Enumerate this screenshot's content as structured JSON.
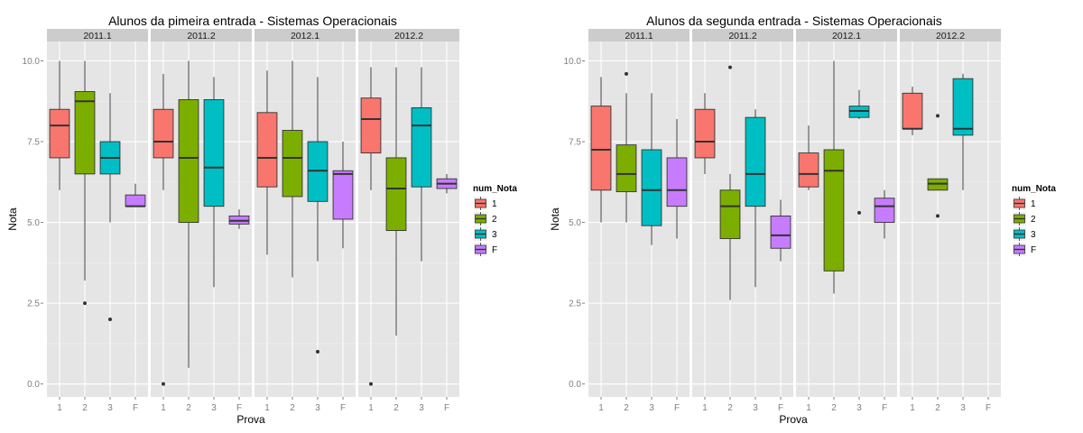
{
  "colors": {
    "panel_bg": "#E5E5E5",
    "strip_bg": "#CCCCCC",
    "grid_major": "#FFFFFF",
    "grid_minor": "#F2F2F2",
    "fill_1": "#F8766D",
    "fill_2": "#7CAE00",
    "fill_3": "#00BFC4",
    "fill_F": "#C77CFF",
    "outline": "#333333"
  },
  "chart_data": [
    {
      "type": "box",
      "title": "Alunos da pimeira entrada -  Sistemas Operacionais",
      "xlabel": "Prova",
      "ylabel": "Nota",
      "ylim": [
        -0.4,
        10.6
      ],
      "yticks": [
        "0.0",
        "2.5",
        "5.0",
        "7.5",
        "10.0"
      ],
      "categories": [
        "1",
        "2",
        "3",
        "F"
      ],
      "facets": [
        "2011.1",
        "2011.2",
        "2012.1",
        "2012.2"
      ],
      "legend": {
        "title": "num_Nota",
        "entries": [
          "1",
          "2",
          "3",
          "F"
        ],
        "position": "right"
      },
      "series": [
        {
          "facet": "2011.1",
          "boxes": [
            {
              "cat": "1",
              "min": 6.0,
              "q1": 7.0,
              "median": 8.0,
              "q3": 8.5,
              "max": 10.0,
              "outliers": []
            },
            {
              "cat": "2",
              "min": 3.2,
              "q1": 6.5,
              "median": 8.75,
              "q3": 9.05,
              "max": 10.0,
              "outliers": [
                2.5
              ]
            },
            {
              "cat": "3",
              "min": 5.0,
              "q1": 6.5,
              "median": 7.0,
              "q3": 7.5,
              "max": 9.0,
              "outliers": [
                2.0
              ]
            },
            {
              "cat": "F",
              "min": 5.5,
              "q1": 5.5,
              "median": 5.5,
              "q3": 5.85,
              "max": 6.2,
              "outliers": []
            }
          ]
        },
        {
          "facet": "2011.2",
          "boxes": [
            {
              "cat": "1",
              "min": 6.0,
              "q1": 7.0,
              "median": 7.5,
              "q3": 8.5,
              "max": 9.6,
              "outliers": [
                0.0
              ]
            },
            {
              "cat": "2",
              "min": 0.5,
              "q1": 5.0,
              "median": 7.0,
              "q3": 8.8,
              "max": 10.0,
              "outliers": []
            },
            {
              "cat": "3",
              "min": 3.0,
              "q1": 5.5,
              "median": 6.7,
              "q3": 8.8,
              "max": 9.5,
              "outliers": []
            },
            {
              "cat": "F",
              "min": 4.8,
              "q1": 4.95,
              "median": 5.05,
              "q3": 5.2,
              "max": 5.4,
              "outliers": []
            }
          ]
        },
        {
          "facet": "2012.1",
          "boxes": [
            {
              "cat": "1",
              "min": 4.0,
              "q1": 6.1,
              "median": 7.0,
              "q3": 8.4,
              "max": 9.7,
              "outliers": []
            },
            {
              "cat": "2",
              "min": 3.3,
              "q1": 5.8,
              "median": 7.0,
              "q3": 7.85,
              "max": 10.0,
              "outliers": []
            },
            {
              "cat": "3",
              "min": 3.8,
              "q1": 5.65,
              "median": 6.6,
              "q3": 7.5,
              "max": 9.5,
              "outliers": [
                1.0
              ]
            },
            {
              "cat": "F",
              "min": 4.2,
              "q1": 5.1,
              "median": 6.5,
              "q3": 6.6,
              "max": 7.5,
              "outliers": []
            }
          ]
        },
        {
          "facet": "2012.2",
          "boxes": [
            {
              "cat": "1",
              "min": 6.0,
              "q1": 7.15,
              "median": 8.2,
              "q3": 8.85,
              "max": 9.8,
              "outliers": [
                0.0
              ]
            },
            {
              "cat": "2",
              "min": 1.5,
              "q1": 4.75,
              "median": 6.05,
              "q3": 7.0,
              "max": 9.8,
              "outliers": []
            },
            {
              "cat": "3",
              "min": 3.8,
              "q1": 6.1,
              "median": 8.0,
              "q3": 8.55,
              "max": 9.8,
              "outliers": []
            },
            {
              "cat": "F",
              "min": 5.9,
              "q1": 6.05,
              "median": 6.2,
              "q3": 6.35,
              "max": 6.5,
              "outliers": []
            }
          ]
        }
      ]
    },
    {
      "type": "box",
      "title": "Alunos da segunda entrada -  Sistemas Operacionais",
      "xlabel": "Prova",
      "ylabel": "Nota",
      "ylim": [
        -0.4,
        10.6
      ],
      "yticks": [
        "0.0",
        "2.5",
        "5.0",
        "7.5",
        "10.0"
      ],
      "categories": [
        "1",
        "2",
        "3",
        "F"
      ],
      "facets": [
        "2011.1",
        "2011.2",
        "2012.1",
        "2012.2"
      ],
      "legend": {
        "title": "num_Nota",
        "entries": [
          "1",
          "2",
          "3",
          "F"
        ],
        "position": "right"
      },
      "series": [
        {
          "facet": "2011.1",
          "boxes": [
            {
              "cat": "1",
              "min": 5.0,
              "q1": 6.0,
              "median": 7.25,
              "q3": 8.6,
              "max": 9.5,
              "outliers": []
            },
            {
              "cat": "2",
              "min": 5.0,
              "q1": 5.95,
              "median": 6.5,
              "q3": 7.4,
              "max": 9.0,
              "outliers": [
                9.6
              ]
            },
            {
              "cat": "3",
              "min": 4.3,
              "q1": 4.9,
              "median": 6.0,
              "q3": 7.25,
              "max": 9.0,
              "outliers": []
            },
            {
              "cat": "F",
              "min": 4.5,
              "q1": 5.5,
              "median": 6.0,
              "q3": 7.0,
              "max": 8.2,
              "outliers": []
            }
          ]
        },
        {
          "facet": "2011.2",
          "boxes": [
            {
              "cat": "1",
              "min": 6.5,
              "q1": 7.0,
              "median": 7.5,
              "q3": 8.5,
              "max": 9.0,
              "outliers": []
            },
            {
              "cat": "2",
              "min": 2.6,
              "q1": 4.5,
              "median": 5.5,
              "q3": 6.0,
              "max": 6.5,
              "outliers": [
                9.8
              ]
            },
            {
              "cat": "3",
              "min": 3.0,
              "q1": 5.5,
              "median": 6.5,
              "q3": 8.25,
              "max": 8.5,
              "outliers": []
            },
            {
              "cat": "F",
              "min": 3.8,
              "q1": 4.2,
              "median": 4.6,
              "q3": 5.2,
              "max": 5.7,
              "outliers": []
            }
          ]
        },
        {
          "facet": "2012.1",
          "boxes": [
            {
              "cat": "1",
              "min": 6.0,
              "q1": 6.1,
              "median": 6.5,
              "q3": 7.15,
              "max": 8.0,
              "outliers": []
            },
            {
              "cat": "2",
              "min": 2.8,
              "q1": 3.5,
              "median": 6.6,
              "q3": 7.25,
              "max": 10.0,
              "outliers": []
            },
            {
              "cat": "3",
              "min": 8.2,
              "q1": 8.25,
              "median": 8.45,
              "q3": 8.6,
              "max": 9.1,
              "outliers": [
                5.3
              ]
            },
            {
              "cat": "F",
              "min": 4.5,
              "q1": 5.0,
              "median": 5.5,
              "q3": 5.75,
              "max": 6.0,
              "outliers": []
            }
          ]
        },
        {
          "facet": "2012.2",
          "boxes": [
            {
              "cat": "1",
              "min": 7.7,
              "q1": 7.9,
              "median": 7.9,
              "q3": 9.0,
              "max": 9.2,
              "outliers": []
            },
            {
              "cat": "2",
              "min": 6.0,
              "q1": 6.0,
              "median": 6.2,
              "q3": 6.35,
              "max": 6.35,
              "outliers": [
                8.3,
                5.2
              ]
            },
            {
              "cat": "3",
              "min": 6.0,
              "q1": 7.7,
              "median": 7.9,
              "q3": 9.45,
              "max": 9.6,
              "outliers": []
            }
          ]
        }
      ]
    }
  ]
}
